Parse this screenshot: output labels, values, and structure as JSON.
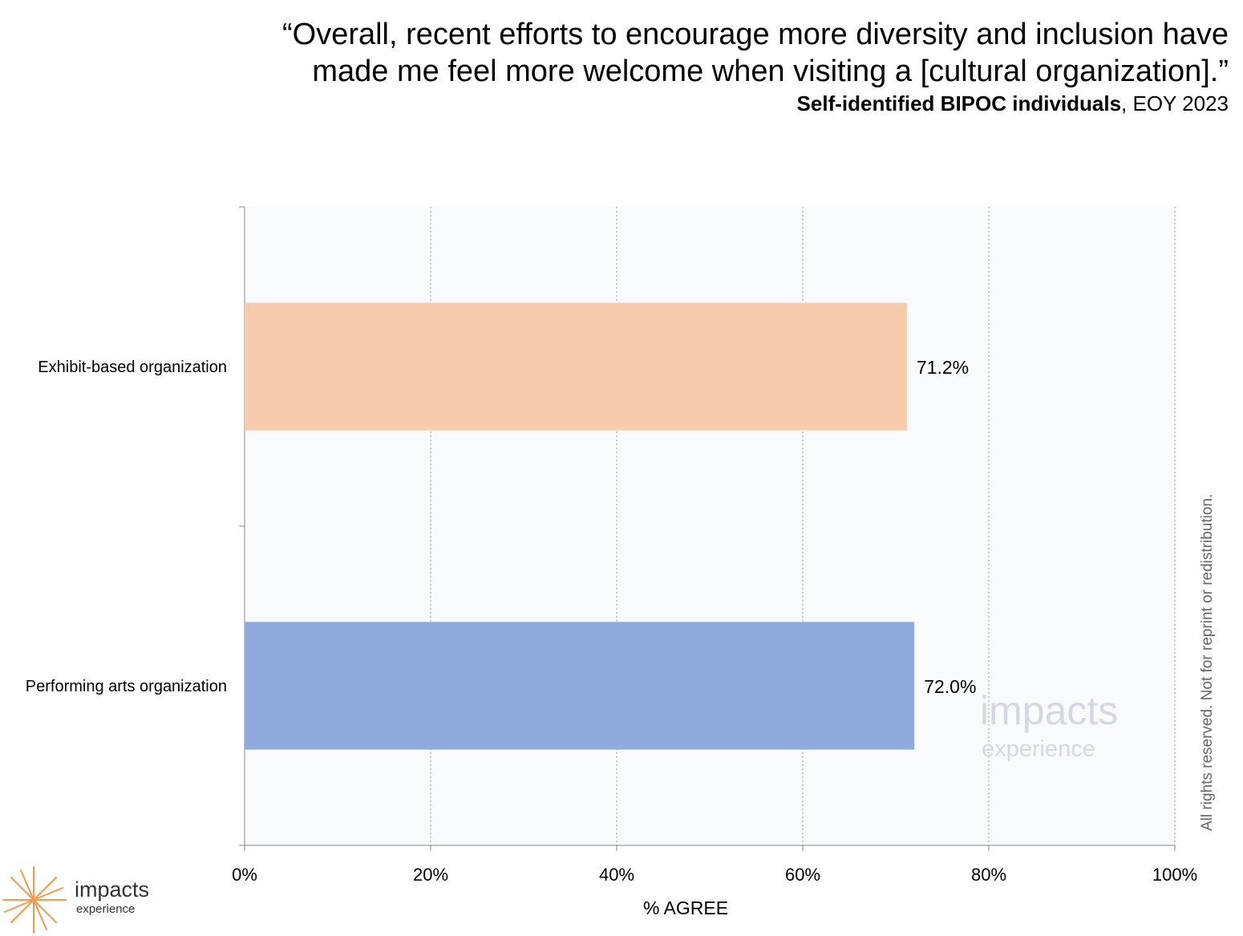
{
  "header": {
    "title_lines": [
      "“Overall, recent efforts to encourage more diversity and inclusion have",
      "made me feel more welcome when visiting a [cultural organization].”"
    ],
    "subtitle_bold": "Self-identified BIPOC individuals",
    "subtitle_rest": ", EOY 2023"
  },
  "chart_data": {
    "type": "bar",
    "orientation": "horizontal",
    "categories": [
      "Exhibit-based organization",
      "Performing arts organization"
    ],
    "values": [
      71.2,
      72.0
    ],
    "value_labels": [
      "71.2%",
      "72.0%"
    ],
    "colors": [
      "#f7cbae",
      "#8faadc"
    ],
    "title": "",
    "xlabel": "% AGREE",
    "ylabel": "",
    "xlim": [
      0,
      100
    ],
    "x_ticks": [
      0,
      20,
      40,
      60,
      80,
      100
    ],
    "x_tick_labels": [
      "0%",
      "20%",
      "40%",
      "60%",
      "80%",
      "100%"
    ],
    "grid": "vertical dotted",
    "legend": "none",
    "plot_background": "#f9fafc"
  },
  "footer": {
    "copyright": "All rights reserved. Not for reprint or redistribution.",
    "logo_name": "impacts",
    "logo_sub": "experience",
    "watermark_name": "impacts",
    "watermark_sub": "experience",
    "logo_color": "#f39a4c",
    "watermark_color": "#d3d8e2"
  }
}
